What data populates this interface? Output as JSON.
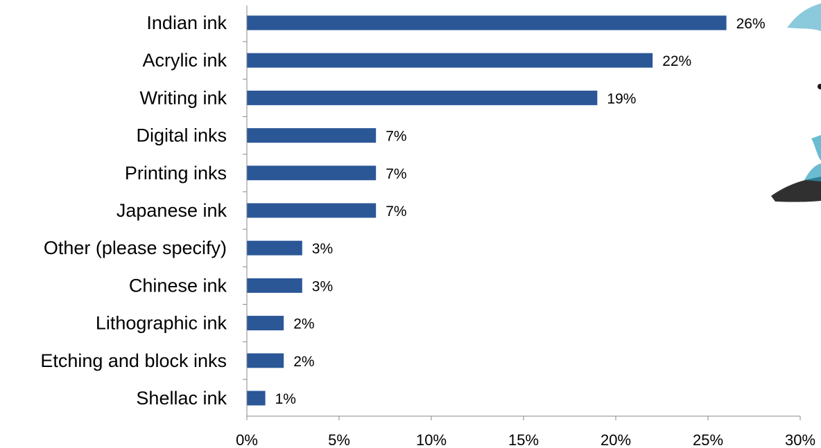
{
  "chart_data": {
    "type": "bar",
    "orientation": "horizontal",
    "categories": [
      "Indian ink",
      "Acrylic ink",
      "Writing ink",
      "Digital inks",
      "Printing inks",
      "Japanese ink",
      "Other (please specify)",
      "Chinese ink",
      "Lithographic ink",
      "Etching and block inks",
      "Shellac ink"
    ],
    "values": [
      26,
      22,
      19,
      7,
      7,
      7,
      3,
      3,
      2,
      2,
      1
    ],
    "data_labels": [
      "26%",
      "22%",
      "19%",
      "7%",
      "7%",
      "7%",
      "3%",
      "3%",
      "2%",
      "2%",
      "1%"
    ],
    "xlim": [
      0,
      30
    ],
    "x_ticks": [
      0,
      5,
      10,
      15,
      20,
      25,
      30
    ],
    "x_tick_labels": [
      "0%",
      "5%",
      "10%",
      "15%",
      "20%",
      "25%",
      "30%"
    ],
    "grid": false,
    "colors": {
      "bar": "#2b5797",
      "axis": "#888888",
      "decoration_dark": "#1a1a1a",
      "decoration_teal": "#2a9fbf"
    }
  }
}
